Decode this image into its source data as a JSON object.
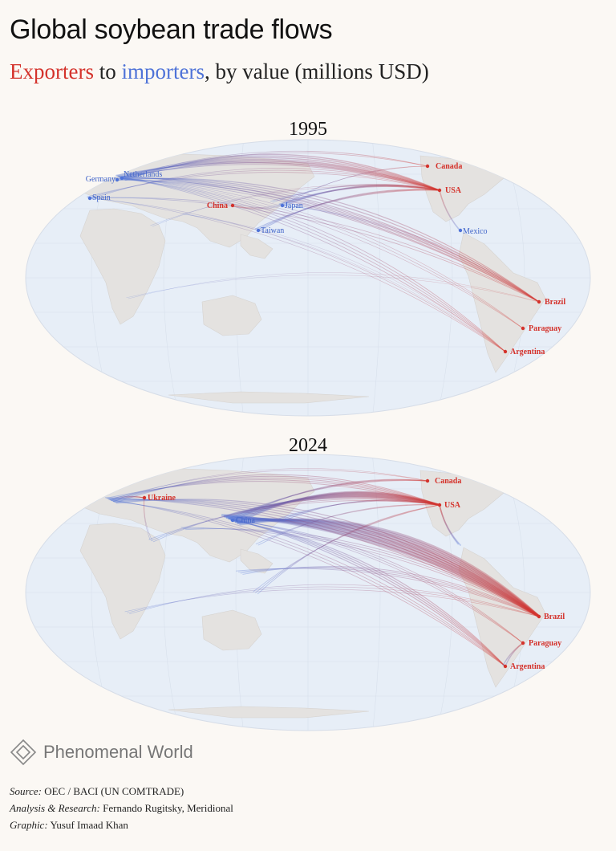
{
  "title": "Global soybean trade flows",
  "subtitle": {
    "exporters": "Exporters",
    "to": "to",
    "importers": "importers",
    "rest": ", by value (millions USD)"
  },
  "colors": {
    "exporter": "#d4322b",
    "importer": "#4f73d8",
    "ocean": "#e7eef7",
    "land": "#e4e2e0"
  },
  "maps": [
    {
      "year": "1995",
      "exporters": [
        "Canada",
        "USA",
        "China",
        "Brazil",
        "Paraguay",
        "Argentina"
      ],
      "importers": [
        "Germany",
        "Netherlands",
        "Spain",
        "Japan",
        "Taiwan",
        "Mexico"
      ]
    },
    {
      "year": "2024",
      "exporters": [
        "Ukraine",
        "Canada",
        "USA",
        "Brazil",
        "Paraguay",
        "Argentina"
      ],
      "importers": [
        "China"
      ]
    }
  ],
  "logo": {
    "icon": "diamond-logo-icon",
    "text": "Phenomenal World"
  },
  "credits": {
    "source_label": "Source:",
    "source_value": "OEC / BACI (UN COMTRADE)",
    "analysis_label": "Analysis & Research:",
    "analysis_value": "Fernando Rugitsky, Meridional",
    "graphic_label": "Graphic:",
    "graphic_value": "Yusuf Imaad Khan"
  }
}
